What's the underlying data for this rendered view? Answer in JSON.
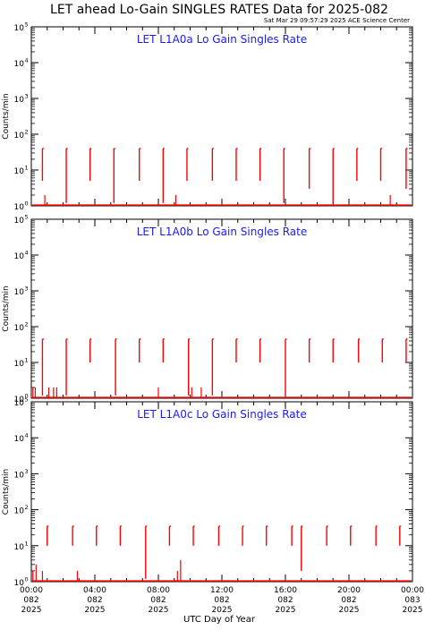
{
  "title": "LET ahead Lo-Gain SINGLES RATES Data for 2025-082",
  "timestamp": "Sat Mar 29 09:57:29 2025 ACE Science Center",
  "colors": {
    "data": "#ff0000",
    "panel_title": "#1a1aff",
    "axes": "#000000"
  },
  "chart_data": [
    {
      "type": "line",
      "title": "LET L1A0a Lo Gain Singles Rate",
      "ylabel": "Counts/min",
      "yscale": "log",
      "ylim": [
        1,
        100000
      ],
      "ytick_labels": [
        "10^0",
        "10^1",
        "10^2",
        "10^3",
        "10^4",
        "10^5"
      ],
      "xlim_hours": [
        0,
        24
      ],
      "baseline": 1,
      "bursts": [
        {
          "t": 0.7,
          "lo": 5,
          "hi": 40
        },
        {
          "t": 2.2,
          "lo": 1.2,
          "hi": 40
        },
        {
          "t": 3.7,
          "lo": 5,
          "hi": 40
        },
        {
          "t": 5.2,
          "lo": 1.2,
          "hi": 40
        },
        {
          "t": 6.8,
          "lo": 5,
          "hi": 40
        },
        {
          "t": 8.3,
          "lo": 1.2,
          "hi": 40
        },
        {
          "t": 9.8,
          "lo": 5,
          "hi": 40
        },
        {
          "t": 11.4,
          "lo": 5,
          "hi": 40
        },
        {
          "t": 12.9,
          "lo": 5,
          "hi": 40
        },
        {
          "t": 14.4,
          "lo": 5,
          "hi": 40
        },
        {
          "t": 15.9,
          "lo": 1.2,
          "hi": 40
        },
        {
          "t": 17.5,
          "lo": 3,
          "hi": 40
        },
        {
          "t": 19.0,
          "lo": 1.2,
          "hi": 40
        },
        {
          "t": 20.5,
          "lo": 5,
          "hi": 40
        },
        {
          "t": 22.0,
          "lo": 5,
          "hi": 40
        },
        {
          "t": 23.6,
          "lo": 3,
          "hi": 40
        }
      ],
      "spikes": [
        {
          "t": 0.85,
          "v": 2
        },
        {
          "t": 9.1,
          "v": 2
        },
        {
          "t": 22.6,
          "v": 2
        }
      ]
    },
    {
      "type": "line",
      "title": "LET L1A0b Lo Gain Singles Rate",
      "ylabel": "Counts/min",
      "yscale": "log",
      "ylim": [
        1,
        100000
      ],
      "ytick_labels": [
        "10^0",
        "10^1",
        "10^2",
        "10^3",
        "10^4",
        "10^5"
      ],
      "xlim_hours": [
        0,
        24
      ],
      "baseline": 1,
      "bursts": [
        {
          "t": 0.7,
          "lo": 1.2,
          "hi": 45
        },
        {
          "t": 2.2,
          "lo": 1.2,
          "hi": 45
        },
        {
          "t": 3.7,
          "lo": 10,
          "hi": 45
        },
        {
          "t": 5.3,
          "lo": 1.2,
          "hi": 45
        },
        {
          "t": 6.8,
          "lo": 10,
          "hi": 45
        },
        {
          "t": 8.3,
          "lo": 10,
          "hi": 45
        },
        {
          "t": 9.9,
          "lo": 1.2,
          "hi": 45
        },
        {
          "t": 11.4,
          "lo": 1.2,
          "hi": 45
        },
        {
          "t": 12.9,
          "lo": 10,
          "hi": 45
        },
        {
          "t": 14.4,
          "lo": 10,
          "hi": 45
        },
        {
          "t": 16.0,
          "lo": 1.2,
          "hi": 45
        },
        {
          "t": 17.5,
          "lo": 10,
          "hi": 45
        },
        {
          "t": 19.0,
          "lo": 10,
          "hi": 45
        },
        {
          "t": 20.6,
          "lo": 10,
          "hi": 45
        },
        {
          "t": 22.1,
          "lo": 10,
          "hi": 45
        },
        {
          "t": 23.6,
          "lo": 10,
          "hi": 45
        }
      ],
      "spikes": [
        {
          "t": 0.1,
          "v": 2
        },
        {
          "t": 0.25,
          "v": 2
        },
        {
          "t": 1.1,
          "v": 2
        },
        {
          "t": 1.4,
          "v": 2
        },
        {
          "t": 1.6,
          "v": 2
        },
        {
          "t": 8.0,
          "v": 2
        },
        {
          "t": 10.1,
          "v": 2
        },
        {
          "t": 10.7,
          "v": 2
        }
      ]
    },
    {
      "type": "line",
      "title": "LET L1A0c Lo Gain Singles Rate",
      "ylabel": "Counts/min",
      "yscale": "log",
      "ylim": [
        1,
        100000
      ],
      "ytick_labels": [
        "10^0",
        "10^1",
        "10^2",
        "10^3",
        "10^4",
        "10^5"
      ],
      "xlim_hours": [
        0,
        24
      ],
      "baseline": 1,
      "bursts": [
        {
          "t": 1.0,
          "lo": 10,
          "hi": 35
        },
        {
          "t": 2.6,
          "lo": 10,
          "hi": 35
        },
        {
          "t": 4.1,
          "lo": 10,
          "hi": 35
        },
        {
          "t": 5.6,
          "lo": 10,
          "hi": 35
        },
        {
          "t": 7.2,
          "lo": 1.2,
          "hi": 35
        },
        {
          "t": 8.7,
          "lo": 10,
          "hi": 35
        },
        {
          "t": 10.2,
          "lo": 10,
          "hi": 35
        },
        {
          "t": 11.8,
          "lo": 10,
          "hi": 35
        },
        {
          "t": 13.3,
          "lo": 10,
          "hi": 35
        },
        {
          "t": 14.8,
          "lo": 10,
          "hi": 35
        },
        {
          "t": 16.4,
          "lo": 10,
          "hi": 35
        },
        {
          "t": 17.0,
          "lo": 2,
          "hi": 35
        },
        {
          "t": 18.6,
          "lo": 10,
          "hi": 35
        },
        {
          "t": 20.1,
          "lo": 10,
          "hi": 35
        },
        {
          "t": 21.7,
          "lo": 10,
          "hi": 35
        },
        {
          "t": 23.2,
          "lo": 10,
          "hi": 35
        }
      ],
      "spikes": [
        {
          "t": 0.1,
          "v": 2
        },
        {
          "t": 0.3,
          "v": 3
        },
        {
          "t": 0.7,
          "v": 2
        },
        {
          "t": 2.9,
          "v": 2
        },
        {
          "t": 9.2,
          "v": 2
        },
        {
          "t": 9.4,
          "v": 4
        }
      ]
    }
  ],
  "xaxis": {
    "label": "UTC Day of Year",
    "ticks": [
      {
        "h": 0,
        "time": "00:00",
        "doy": "082",
        "year": "2025"
      },
      {
        "h": 4,
        "time": "04:00",
        "doy": "082",
        "year": "2025"
      },
      {
        "h": 8,
        "time": "08:00",
        "doy": "082",
        "year": "2025"
      },
      {
        "h": 12,
        "time": "12:00",
        "doy": "082",
        "year": "2025"
      },
      {
        "h": 16,
        "time": "16:00",
        "doy": "082",
        "year": "2025"
      },
      {
        "h": 20,
        "time": "20:00",
        "doy": "082",
        "year": "2025"
      },
      {
        "h": 24,
        "time": "00:00",
        "doy": "083",
        "year": "2025"
      }
    ]
  }
}
